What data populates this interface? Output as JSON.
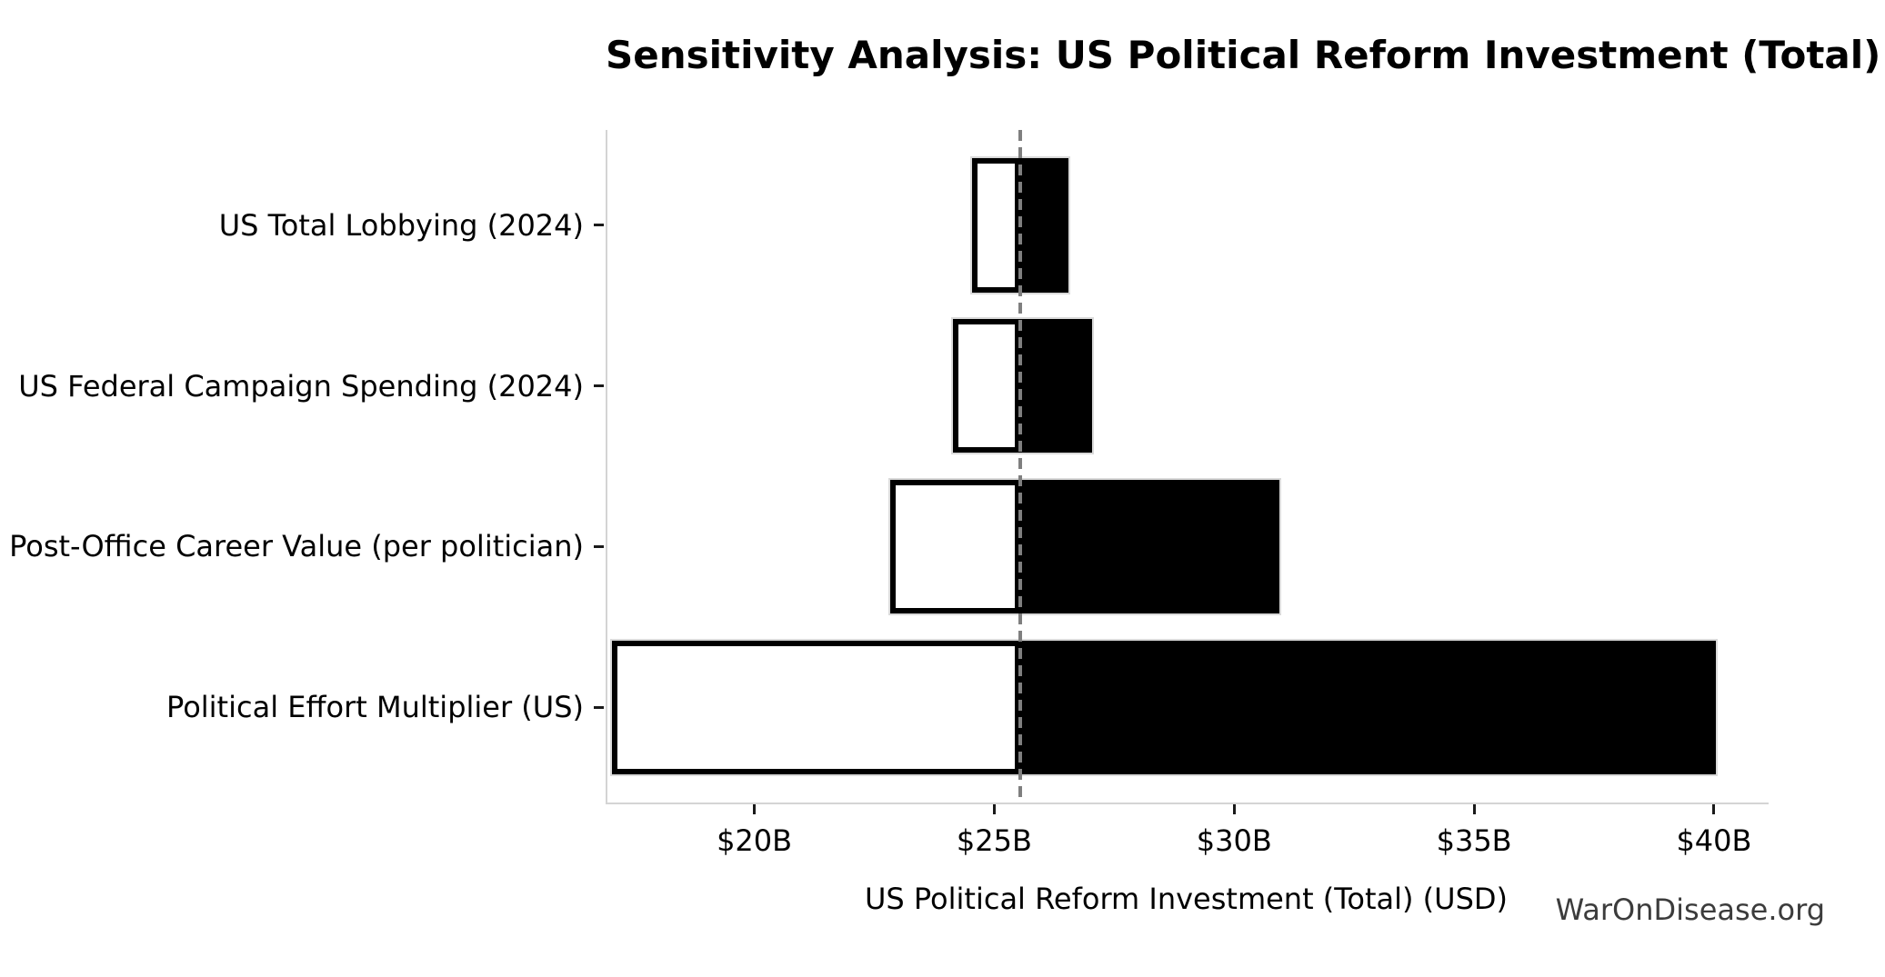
{
  "title": "Sensitivity Analysis: US Political Reform Investment (Total)",
  "watermark": "WarOnDisease.org",
  "chart_data": {
    "type": "bar",
    "subtype": "tornado-horizontal",
    "title": "Sensitivity Analysis: US Political Reform Investment (Total)",
    "xlabel": "US Political Reform Investment (Total) (USD)",
    "ylabel": "",
    "categories": [
      "US Total Lobbying (2024)",
      "US Federal Campaign Spending (2024)",
      "Post-Office Career Value (per politician)",
      "Political Effort Multiplier (US)"
    ],
    "baseline_value": 25.5,
    "series": [
      {
        "name": "low",
        "fill": "#ffffff",
        "edge": "#000000",
        "values": [
          24.5,
          24.1,
          22.8,
          17.0
        ]
      },
      {
        "name": "high",
        "fill": "#000000",
        "edge": "#dadada",
        "values": [
          26.5,
          27.0,
          30.9,
          40.0
        ]
      }
    ],
    "value_unit": "billions USD",
    "xlim": [
      16.9,
      41.1
    ],
    "xticks": [
      20,
      25,
      30,
      35,
      40
    ],
    "xtick_labels": [
      "$20B",
      "$25B",
      "$30B",
      "$35B",
      "$40B"
    ],
    "grid": false,
    "legend": "none",
    "baseline_line_style": "dashed",
    "baseline_line_color": "#7f7f7f",
    "spine_color": "#d4d4d4"
  }
}
